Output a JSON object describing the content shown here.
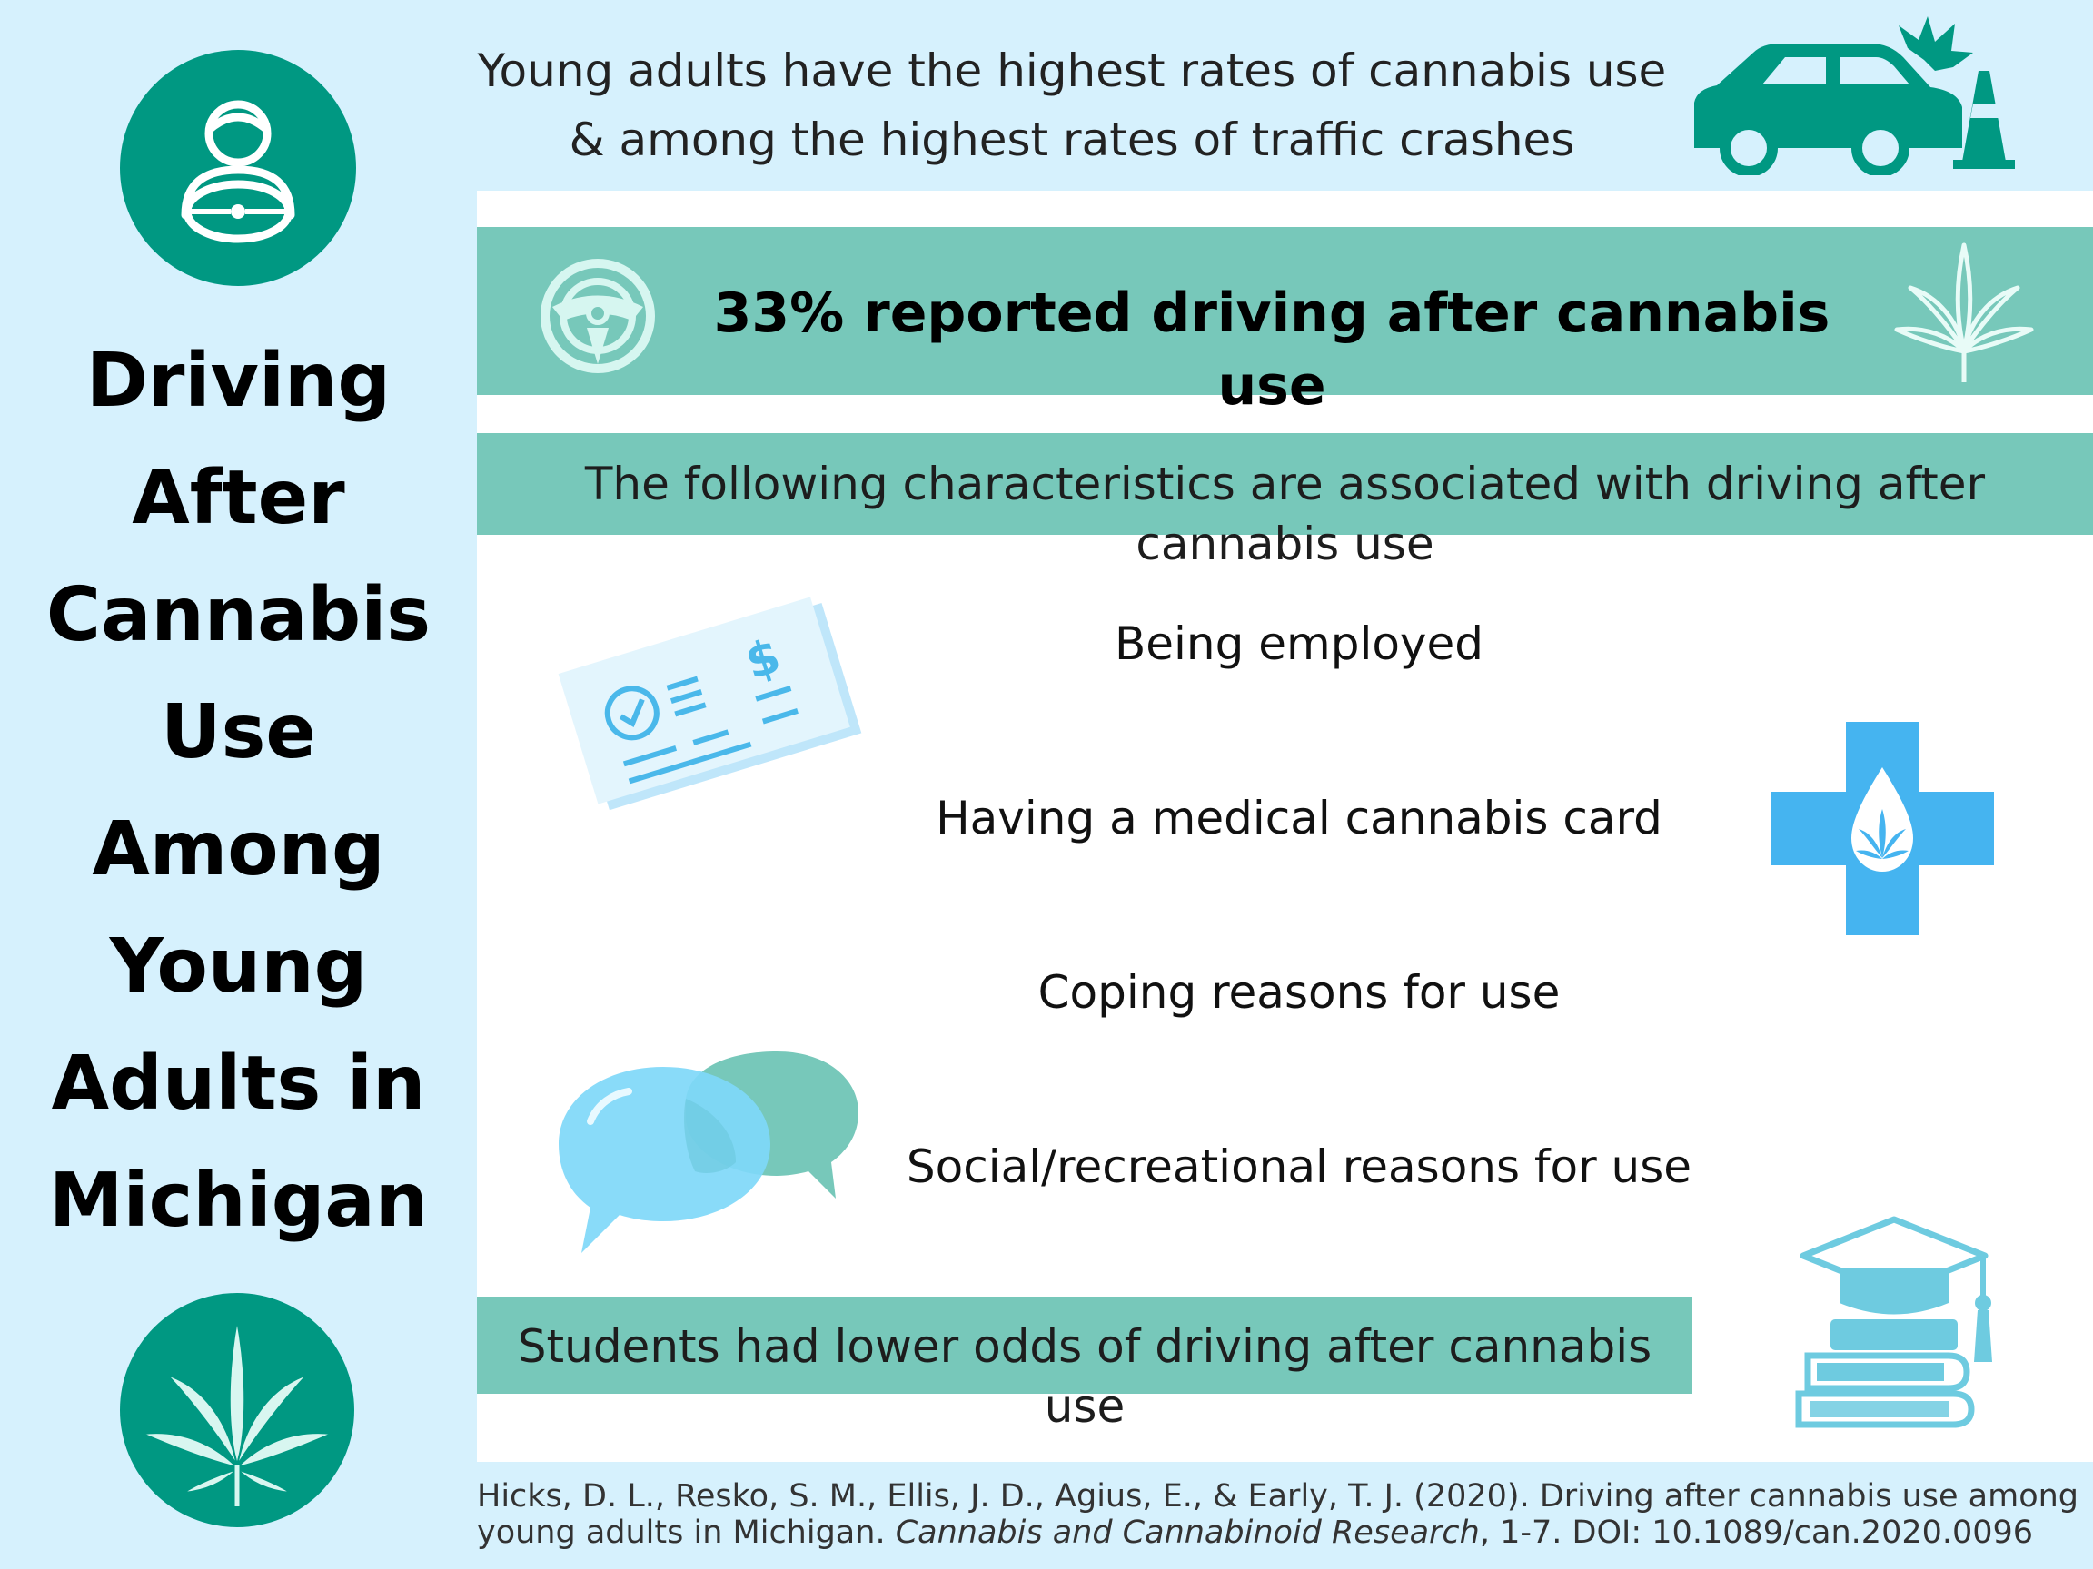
{
  "title_lines": [
    "Driving",
    "After",
    "Cannabis",
    "Use",
    "Among",
    "Young",
    "Adults in",
    "Michigan"
  ],
  "header": {
    "line1": "Young adults have the highest rates of cannabis use",
    "line2": "& among the highest rates of traffic crashes"
  },
  "stat": "33% reported driving after cannabis use",
  "characteristics_heading": "The following characteristics are associated with driving after cannabis use",
  "characteristics": [
    "Being employed",
    "Having a medical cannabis card",
    "Coping reasons for use",
    "Social/recreational reasons for use"
  ],
  "students": "Students had lower odds of driving after cannabis use",
  "citation": {
    "part1": "Hicks, D. L., Resko, S. M., Ellis, J. D., Agius, E., & Early, T. J. (2020). Driving after cannabis use among young adults in Michigan. ",
    "journal": "Cannabis and Cannabinoid Research",
    "part2": ", 1-7. DOI: 10.1089/can.2020.0096"
  },
  "colors": {
    "background": "#d6f1fd",
    "teal_dark": "#009882",
    "teal_band": "#77c8ba",
    "light_blue": "#6ecff0",
    "sky_blue": "#45b4f0"
  },
  "icons": [
    "driver-icon",
    "car-crash-icon",
    "steering-wheel-icon",
    "cannabis-leaf-icon",
    "paycheck-icon",
    "medical-cross-icon",
    "speech-bubbles-icon",
    "graduation-books-icon",
    "cannabis-circle-icon"
  ]
}
